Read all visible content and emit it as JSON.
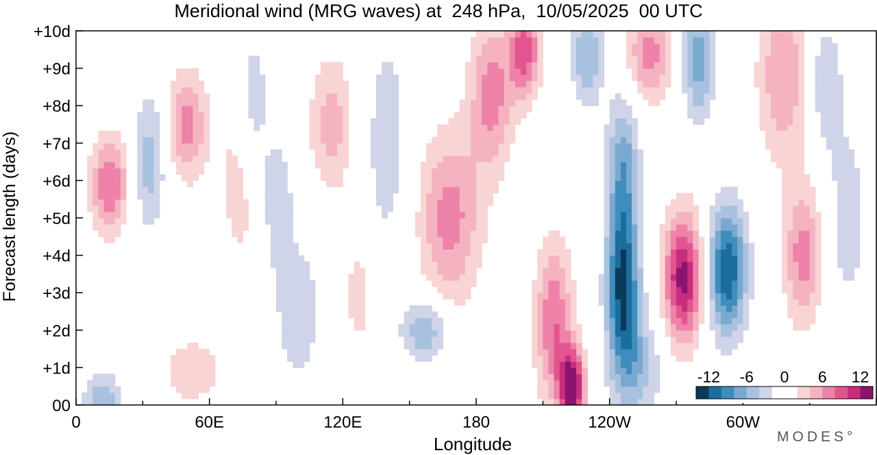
{
  "chart_data": {
    "type": "heatmap",
    "title": "Meridional wind (MRG waves) at  248 hPa,  10/05/2025  00 UTC",
    "xlabel": "Longitude",
    "ylabel": "Forecast length (days)",
    "x_ticks": [
      "0",
      "60E",
      "120E",
      "180",
      "120W",
      "60W"
    ],
    "x_tick_values": [
      0,
      60,
      120,
      180,
      240,
      300
    ],
    "y_ticks": [
      "00",
      "+1d",
      "+2d",
      "+3d",
      "+4d",
      "+5d",
      "+6d",
      "+7d",
      "+8d",
      "+9d",
      "+10d"
    ],
    "y_tick_values": [
      0,
      1,
      2,
      3,
      4,
      5,
      6,
      7,
      8,
      9,
      10
    ],
    "xlim": [
      0,
      360
    ],
    "ylim": [
      0,
      10
    ],
    "colorbar": {
      "tick_labels": [
        "-12",
        "-6",
        "0",
        "6",
        "12"
      ],
      "tick_values": [
        -12,
        -6,
        0,
        6,
        12
      ],
      "levels": [
        -14,
        -12,
        -10,
        -8,
        -6,
        -4,
        -2,
        0,
        2,
        4,
        6,
        8,
        10,
        12,
        14
      ],
      "colors": [
        "#0b3a5a",
        "#1a6e9e",
        "#3f8dbd",
        "#7aa9d0",
        "#a8c1df",
        "#cfd4e8",
        "#ffffff",
        "#ffffff",
        "#f9d4d4",
        "#f5b3c1",
        "#ee82a8",
        "#e2558f",
        "#c62d7e",
        "#8a1470"
      ]
    },
    "features": [
      {
        "lon": 15,
        "day": 5.9,
        "amp": 8,
        "slon": 6,
        "sday": 0.9
      },
      {
        "lon": 12,
        "day": 0.1,
        "amp": -6,
        "slon": 6,
        "sday": 0.5
      },
      {
        "lon": 33,
        "day": 6.5,
        "amp": -5,
        "slon": 5,
        "sday": 1.3
      },
      {
        "lon": 50,
        "day": 7.5,
        "amp": 7,
        "slon": 6,
        "sday": 1.0
      },
      {
        "lon": 52,
        "day": 0.9,
        "amp": 4,
        "slon": 9,
        "sday": 0.6
      },
      {
        "lon": 75,
        "day": 6.0,
        "amp": 3,
        "slon": 9,
        "sday": 2.0
      },
      {
        "lon": 80,
        "day": 8.0,
        "amp": -4,
        "slon": 5,
        "sday": 1.5
      },
      {
        "lon": 90,
        "day": 5.5,
        "amp": -4,
        "slon": 5,
        "sday": 1.3
      },
      {
        "lon": 100,
        "day": 2.5,
        "amp": -3,
        "slon": 9,
        "sday": 1.6
      },
      {
        "lon": 115,
        "day": 7.5,
        "amp": 5,
        "slon": 7,
        "sday": 1.3
      },
      {
        "lon": 127,
        "day": 3.0,
        "amp": 3,
        "slon": 5,
        "sday": 1.3
      },
      {
        "lon": 140,
        "day": 7.0,
        "amp": -3,
        "slon": 8,
        "sday": 2.5
      },
      {
        "lon": 157,
        "day": 2.0,
        "amp": -6,
        "slon": 7,
        "sday": 0.6
      },
      {
        "lon": 168,
        "day": 5.0,
        "amp": 7,
        "slon": 10,
        "sday": 1.6
      },
      {
        "lon": 187,
        "day": 8.3,
        "amp": 7,
        "slon": 7,
        "sday": 1.4
      },
      {
        "lon": 202,
        "day": 9.5,
        "amp": 9,
        "slon": 5,
        "sday": 0.9
      },
      {
        "lon": 215,
        "day": 2.2,
        "amp": 8,
        "slon": 6,
        "sday": 1.5
      },
      {
        "lon": 223,
        "day": 0.5,
        "amp": 14,
        "slon": 4,
        "sday": 0.7
      },
      {
        "lon": 230,
        "day": 9.4,
        "amp": -6,
        "slon": 5,
        "sday": 1.0
      },
      {
        "lon": 246,
        "day": 3.2,
        "amp": -13,
        "slon": 5,
        "sday": 1.5
      },
      {
        "lon": 246,
        "day": 6.4,
        "amp": -7,
        "slon": 5,
        "sday": 1.3
      },
      {
        "lon": 252,
        "day": 1.0,
        "amp": -5,
        "slon": 8,
        "sday": 1.0
      },
      {
        "lon": 258,
        "day": 9.4,
        "amp": 7,
        "slon": 7,
        "sday": 0.9
      },
      {
        "lon": 273,
        "day": 3.4,
        "amp": 13,
        "slon": 6,
        "sday": 1.2
      },
      {
        "lon": 280,
        "day": 9.3,
        "amp": -7,
        "slon": 5,
        "sday": 1.2
      },
      {
        "lon": 293,
        "day": 3.6,
        "amp": -12,
        "slon": 6,
        "sday": 1.2
      },
      {
        "lon": 318,
        "day": 8.8,
        "amp": 6,
        "slon": 8,
        "sday": 1.6
      },
      {
        "lon": 327,
        "day": 4.0,
        "amp": 7,
        "slon": 6,
        "sday": 1.3
      },
      {
        "lon": 337,
        "day": 8.6,
        "amp": -4,
        "slon": 5,
        "sday": 1.2
      },
      {
        "lon": 347,
        "day": 5.0,
        "amp": -3,
        "slon": 7,
        "sday": 2.0
      }
    ]
  },
  "brand": {
    "text": "MODES°"
  }
}
